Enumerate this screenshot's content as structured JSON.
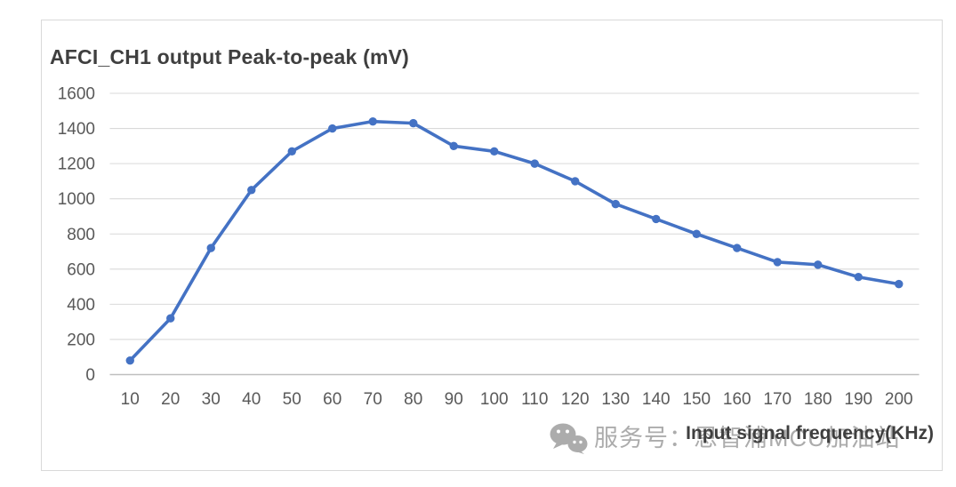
{
  "chart_data": {
    "type": "line",
    "title": "AFCI_CH1 output Peak-to-peak (mV)",
    "xlabel": "Input signal frequency(KHz)",
    "ylabel": "",
    "x": [
      10,
      20,
      30,
      40,
      50,
      60,
      70,
      80,
      90,
      100,
      110,
      120,
      130,
      140,
      150,
      160,
      170,
      180,
      190,
      200
    ],
    "values": [
      80,
      320,
      720,
      1050,
      1270,
      1400,
      1440,
      1430,
      1300,
      1270,
      1200,
      1100,
      970,
      885,
      800,
      720,
      640,
      625,
      555,
      515
    ],
    "ylim": [
      0,
      1600
    ],
    "yticks": [
      0,
      200,
      400,
      600,
      800,
      1000,
      1200,
      1400,
      1600
    ],
    "grid": true,
    "legend_position": "none",
    "marker": "circle",
    "colors": {
      "series": "#4472C4",
      "gridline": "#D9D9D9",
      "axis_line": "#BFBFBF",
      "tick_label": "#595959",
      "title": "#3F3F3F",
      "frame_border": "#D9D9D9",
      "background": "#FFFFFF"
    }
  },
  "watermark": {
    "icon": "wechat-icon",
    "text": "服务号：恩智浦MCU加油站",
    "color": "#ACACAC"
  }
}
